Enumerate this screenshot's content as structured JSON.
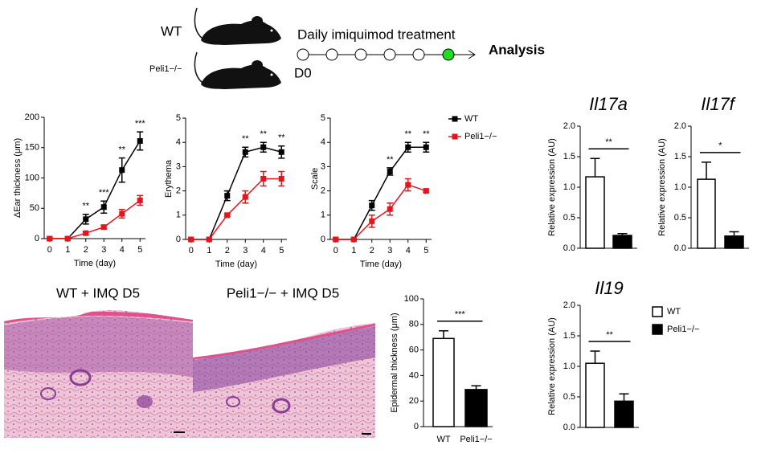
{
  "schematic": {
    "genotypes": [
      "WT",
      "Peli1−/−"
    ],
    "treatment": "Daily imiquimod treatment",
    "day": "D0",
    "endpoint": "Analysis"
  },
  "histology": {
    "panels": [
      "WT + IMQ D5",
      "Peli1−/− + IMQ D5"
    ]
  },
  "chart_data": [
    {
      "type": "line",
      "ylabel": "ΔEar thickness (μm)",
      "xlabel": "Time (day)",
      "x": [
        0,
        1,
        2,
        3,
        4,
        5
      ],
      "xlim": [
        -0.3,
        5.3
      ],
      "xticks": [
        0,
        1,
        2,
        3,
        4,
        5
      ],
      "ylim": [
        0,
        200
      ],
      "yticks": [
        0,
        50,
        100,
        150,
        200
      ],
      "series": [
        {
          "color": "#000000",
          "values": [
            0,
            0,
            32,
            52,
            113,
            161
          ],
          "errors": [
            0,
            0,
            8,
            10,
            20,
            15
          ]
        },
        {
          "color": "#e8141b",
          "values": [
            0,
            0,
            9,
            19,
            41,
            63
          ],
          "errors": [
            0,
            0,
            2,
            3,
            7,
            8
          ]
        }
      ],
      "significance": [
        null,
        null,
        "**",
        "***",
        "**",
        "***"
      ]
    },
    {
      "type": "line",
      "ylabel": "Erythema",
      "xlabel": "Time (day)",
      "x": [
        0,
        1,
        2,
        3,
        4,
        5
      ],
      "xlim": [
        -0.3,
        5.3
      ],
      "xticks": [
        0,
        1,
        2,
        3,
        4,
        5
      ],
      "ylim": [
        0,
        5
      ],
      "yticks": [
        0,
        1,
        2,
        3,
        4,
        5
      ],
      "series": [
        {
          "color": "#000000",
          "values": [
            0,
            0,
            1.8,
            3.6,
            3.8,
            3.6
          ],
          "errors": [
            0,
            0,
            0.2,
            0.2,
            0.2,
            0.25
          ]
        },
        {
          "color": "#e8141b",
          "values": [
            0,
            0,
            1.0,
            1.75,
            2.5,
            2.5
          ],
          "errors": [
            0,
            0,
            0.05,
            0.25,
            0.3,
            0.3
          ]
        }
      ],
      "significance": [
        null,
        null,
        null,
        "**",
        "**",
        "**"
      ]
    },
    {
      "type": "line",
      "ylabel": "Scale",
      "xlabel": "Time (day)",
      "x": [
        0,
        1,
        2,
        3,
        4,
        5
      ],
      "xlim": [
        -0.3,
        5.3
      ],
      "xticks": [
        0,
        1,
        2,
        3,
        4,
        5
      ],
      "ylim": [
        0,
        5
      ],
      "yticks": [
        0,
        1,
        2,
        3,
        4,
        5
      ],
      "series": [
        {
          "name": "WT",
          "color": "#000000",
          "values": [
            0,
            0,
            1.4,
            2.8,
            3.8,
            3.8
          ],
          "errors": [
            0,
            0,
            0.2,
            0.15,
            0.2,
            0.2
          ]
        },
        {
          "name": "Peli1−/−",
          "color": "#e8141b",
          "values": [
            0,
            0,
            0.75,
            1.25,
            2.25,
            2.0
          ],
          "errors": [
            0,
            0,
            0.25,
            0.25,
            0.25,
            0.05
          ]
        }
      ],
      "significance": [
        null,
        null,
        null,
        "**",
        "**",
        "**"
      ],
      "legend": true
    },
    {
      "type": "bar",
      "title": "Il17a",
      "ylabel": "Relative expression (AU)",
      "categories": [
        null,
        null
      ],
      "values": [
        1.17,
        0.21
      ],
      "errors": [
        0.3,
        0.03
      ],
      "colors": [
        "#ffffff",
        "#000000"
      ],
      "ylim": [
        0,
        2
      ],
      "yticks": [
        {
          "value": 0,
          "label": "0.0"
        },
        0.5,
        {
          "value": 1,
          "label": "1.0"
        },
        1.5,
        {
          "value": 2,
          "label": "2.0"
        }
      ],
      "significance": "**"
    },
    {
      "type": "bar",
      "title": "Il17f",
      "ylabel": "Relative expression (AU)",
      "categories": [
        null,
        null
      ],
      "values": [
        1.13,
        0.2
      ],
      "errors": [
        0.28,
        0.07
      ],
      "colors": [
        "#ffffff",
        "#000000"
      ],
      "ylim": [
        0,
        2
      ],
      "yticks": [
        {
          "value": 0,
          "label": "0.0"
        },
        0.5,
        {
          "value": 1,
          "label": "1.0"
        },
        1.5,
        {
          "value": 2,
          "label": "2.0"
        }
      ],
      "significance": "*"
    },
    {
      "type": "bar",
      "title": "Il19",
      "ylabel": "Relative expression (AU)",
      "categories": [
        null,
        null
      ],
      "values": [
        1.05,
        0.43
      ],
      "errors": [
        0.2,
        0.12
      ],
      "colors": [
        "#ffffff",
        "#000000"
      ],
      "ylim": [
        0,
        2
      ],
      "yticks": [
        {
          "value": 0,
          "label": "0.0"
        },
        0.5,
        {
          "value": 1,
          "label": "1.0"
        },
        1.5,
        {
          "value": 2,
          "label": "2.0"
        }
      ],
      "significance": "**",
      "legend_labels": [
        "WT",
        "Peli1−/−"
      ]
    },
    {
      "type": "bar",
      "ylabel": "Epidermal thickness (μm)",
      "categories": [
        "WT",
        "Peli1−/−"
      ],
      "values": [
        69,
        29
      ],
      "errors": [
        6,
        3
      ],
      "colors": [
        "#ffffff",
        "#000000"
      ],
      "ylim": [
        0,
        100
      ],
      "yticks": [
        0,
        20,
        40,
        60,
        80,
        100
      ],
      "significance": "***"
    }
  ]
}
